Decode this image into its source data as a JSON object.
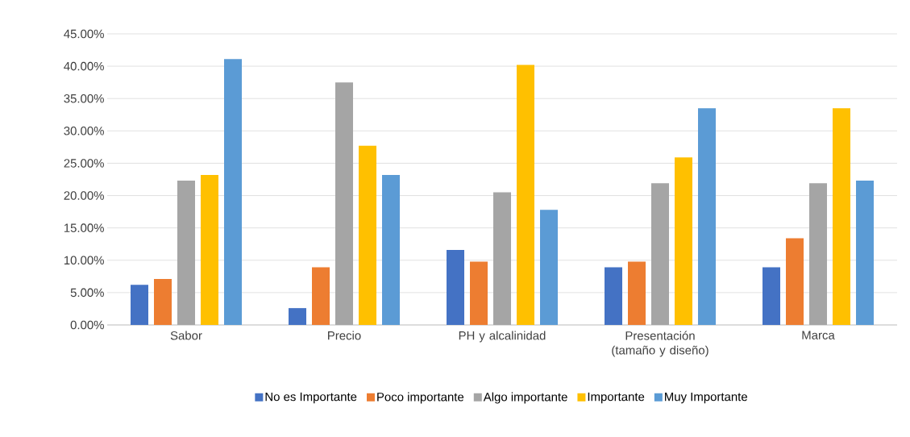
{
  "chart_data": {
    "type": "bar",
    "categories": [
      "Sabor",
      "Precio",
      "PH y alcalinidad",
      "Presentación (tamaño y diseño)",
      "Marca"
    ],
    "series": [
      {
        "name": "No es Importante",
        "color": "#4472c4",
        "values": [
          6.2,
          2.6,
          11.6,
          8.9,
          8.9
        ]
      },
      {
        "name": "Poco importante",
        "color": "#ed7d31",
        "values": [
          7.1,
          8.9,
          9.8,
          9.8,
          13.4
        ]
      },
      {
        "name": "Algo importante",
        "color": "#a5a5a5",
        "values": [
          22.3,
          37.5,
          20.5,
          21.9,
          21.9
        ]
      },
      {
        "name": "Importante",
        "color": "#ffc000",
        "values": [
          23.2,
          27.7,
          40.2,
          25.9,
          33.5
        ]
      },
      {
        "name": "Muy Importante",
        "color": "#5b9bd5",
        "values": [
          41.1,
          23.2,
          17.8,
          33.5,
          22.3
        ]
      }
    ],
    "ylim": [
      0,
      45
    ],
    "yticks": [
      {
        "value": 0,
        "label": "0.00%"
      },
      {
        "value": 5,
        "label": "5.00%"
      },
      {
        "value": 10,
        "label": "10.00%"
      },
      {
        "value": 15,
        "label": "15.00%"
      },
      {
        "value": 20,
        "label": "20.00%"
      },
      {
        "value": 25,
        "label": "25.00%"
      },
      {
        "value": 30,
        "label": "30.00%"
      },
      {
        "value": 35,
        "label": "35.00%"
      },
      {
        "value": 40,
        "label": "40.00%"
      },
      {
        "value": 45,
        "label": "45.00%"
      }
    ],
    "grid": "y",
    "legend": "bottom"
  }
}
